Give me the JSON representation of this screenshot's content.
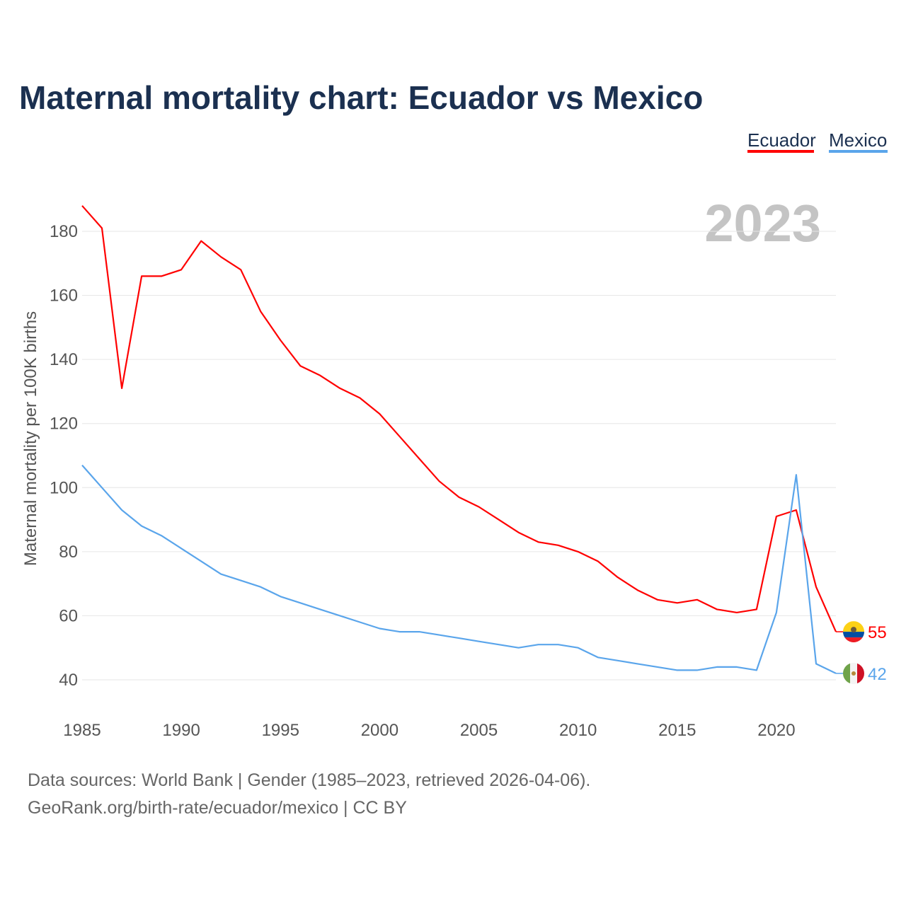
{
  "chart_data": {
    "type": "line",
    "title": "Maternal mortality chart: Ecuador vs Mexico",
    "ylabel": "Maternal mortality per 100K births",
    "xlabel": "",
    "xlim": [
      1985,
      2023
    ],
    "ylim": [
      30,
      192
    ],
    "yticks": [
      40,
      60,
      80,
      100,
      120,
      140,
      160,
      180
    ],
    "xticks": [
      1985,
      1990,
      1995,
      2000,
      2005,
      2010,
      2015,
      2020
    ],
    "grid": true,
    "legend_position": "top-right",
    "year_label": "2023",
    "x": [
      1985,
      1986,
      1987,
      1988,
      1989,
      1990,
      1991,
      1992,
      1993,
      1994,
      1995,
      1996,
      1997,
      1998,
      1999,
      2000,
      2001,
      2002,
      2003,
      2004,
      2005,
      2006,
      2007,
      2008,
      2009,
      2010,
      2011,
      2012,
      2013,
      2014,
      2015,
      2016,
      2017,
      2018,
      2019,
      2020,
      2021,
      2022,
      2023
    ],
    "series": [
      {
        "name": "Ecuador",
        "color": "#ff0000",
        "end_label": "55",
        "values": [
          188,
          181,
          131,
          166,
          166,
          168,
          177,
          172,
          168,
          155,
          146,
          138,
          135,
          131,
          128,
          123,
          116,
          109,
          102,
          97,
          94,
          90,
          86,
          83,
          82,
          80,
          77,
          72,
          68,
          65,
          64,
          65,
          62,
          61,
          62,
          91,
          93,
          69,
          55
        ]
      },
      {
        "name": "Mexico",
        "color": "#5aa5eb",
        "end_label": "42",
        "values": [
          107,
          100,
          93,
          88,
          85,
          81,
          77,
          73,
          71,
          69,
          66,
          64,
          62,
          60,
          58,
          56,
          55,
          55,
          54,
          53,
          52,
          51,
          50,
          51,
          51,
          50,
          47,
          46,
          45,
          44,
          43,
          43,
          44,
          44,
          43,
          61,
          104,
          45,
          42
        ]
      }
    ],
    "source_line1": "Data sources: World Bank | Gender (1985–2023, retrieved 2026-04-06).",
    "source_line2": "GeoRank.org/birth-rate/ecuador/mexico | CC BY"
  }
}
